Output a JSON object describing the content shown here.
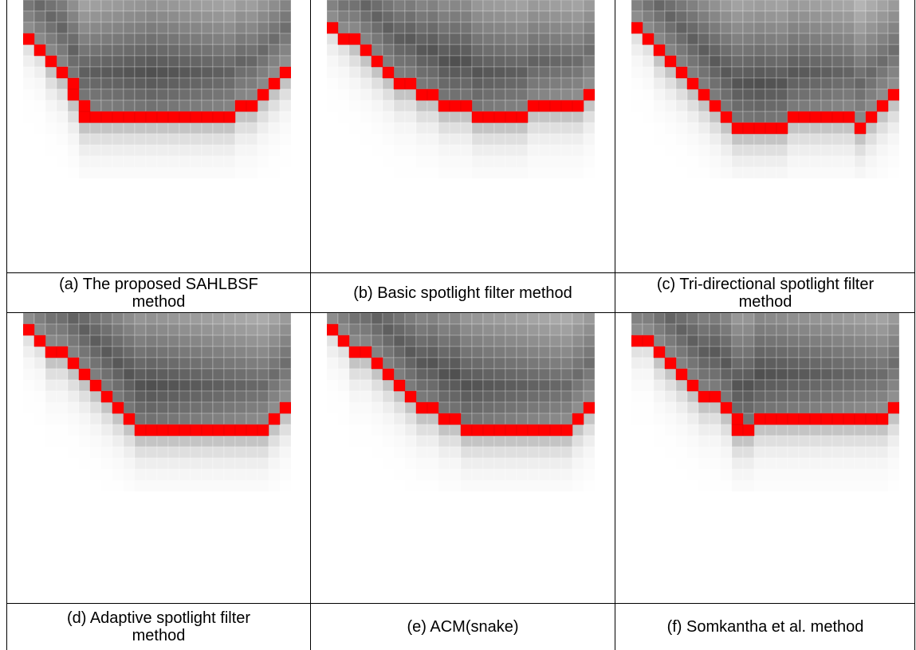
{
  "figure": {
    "panels": [
      {
        "caption": "(a)  The proposed SAHLBSF method"
      },
      {
        "caption": "(b)  Basic spotlight filter method"
      },
      {
        "caption": "(c)  Tri-directional spotlight filter method"
      },
      {
        "caption": "(d) Adaptive spotlight filter method"
      },
      {
        "caption": "(e) ACM(snake)"
      },
      {
        "caption": "(f) Somkantha et al. method"
      }
    ]
  }
}
